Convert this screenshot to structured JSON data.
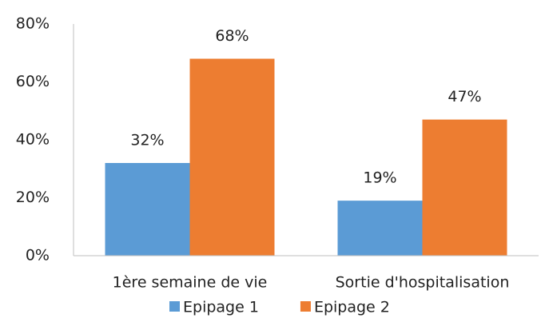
{
  "chart_data": {
    "type": "bar",
    "categories": [
      "1ère semaine de vie",
      "Sortie d'hospitalisation"
    ],
    "series": [
      {
        "name": "Epipage 1",
        "color": "#5b9bd5",
        "values": [
          32,
          19
        ],
        "value_labels": [
          "32%",
          "19%"
        ]
      },
      {
        "name": "Epipage 2",
        "color": "#ed7d31",
        "values": [
          68,
          47
        ],
        "value_labels": [
          "68%",
          "47%"
        ]
      }
    ],
    "ylim": [
      0,
      80
    ],
    "yticks": [
      {
        "value": 0,
        "label": "0%"
      },
      {
        "value": 20,
        "label": "20%"
      },
      {
        "value": 40,
        "label": "40%"
      },
      {
        "value": 60,
        "label": "60%"
      },
      {
        "value": 80,
        "label": "80%"
      }
    ],
    "grid": false,
    "legend": "bottom"
  }
}
